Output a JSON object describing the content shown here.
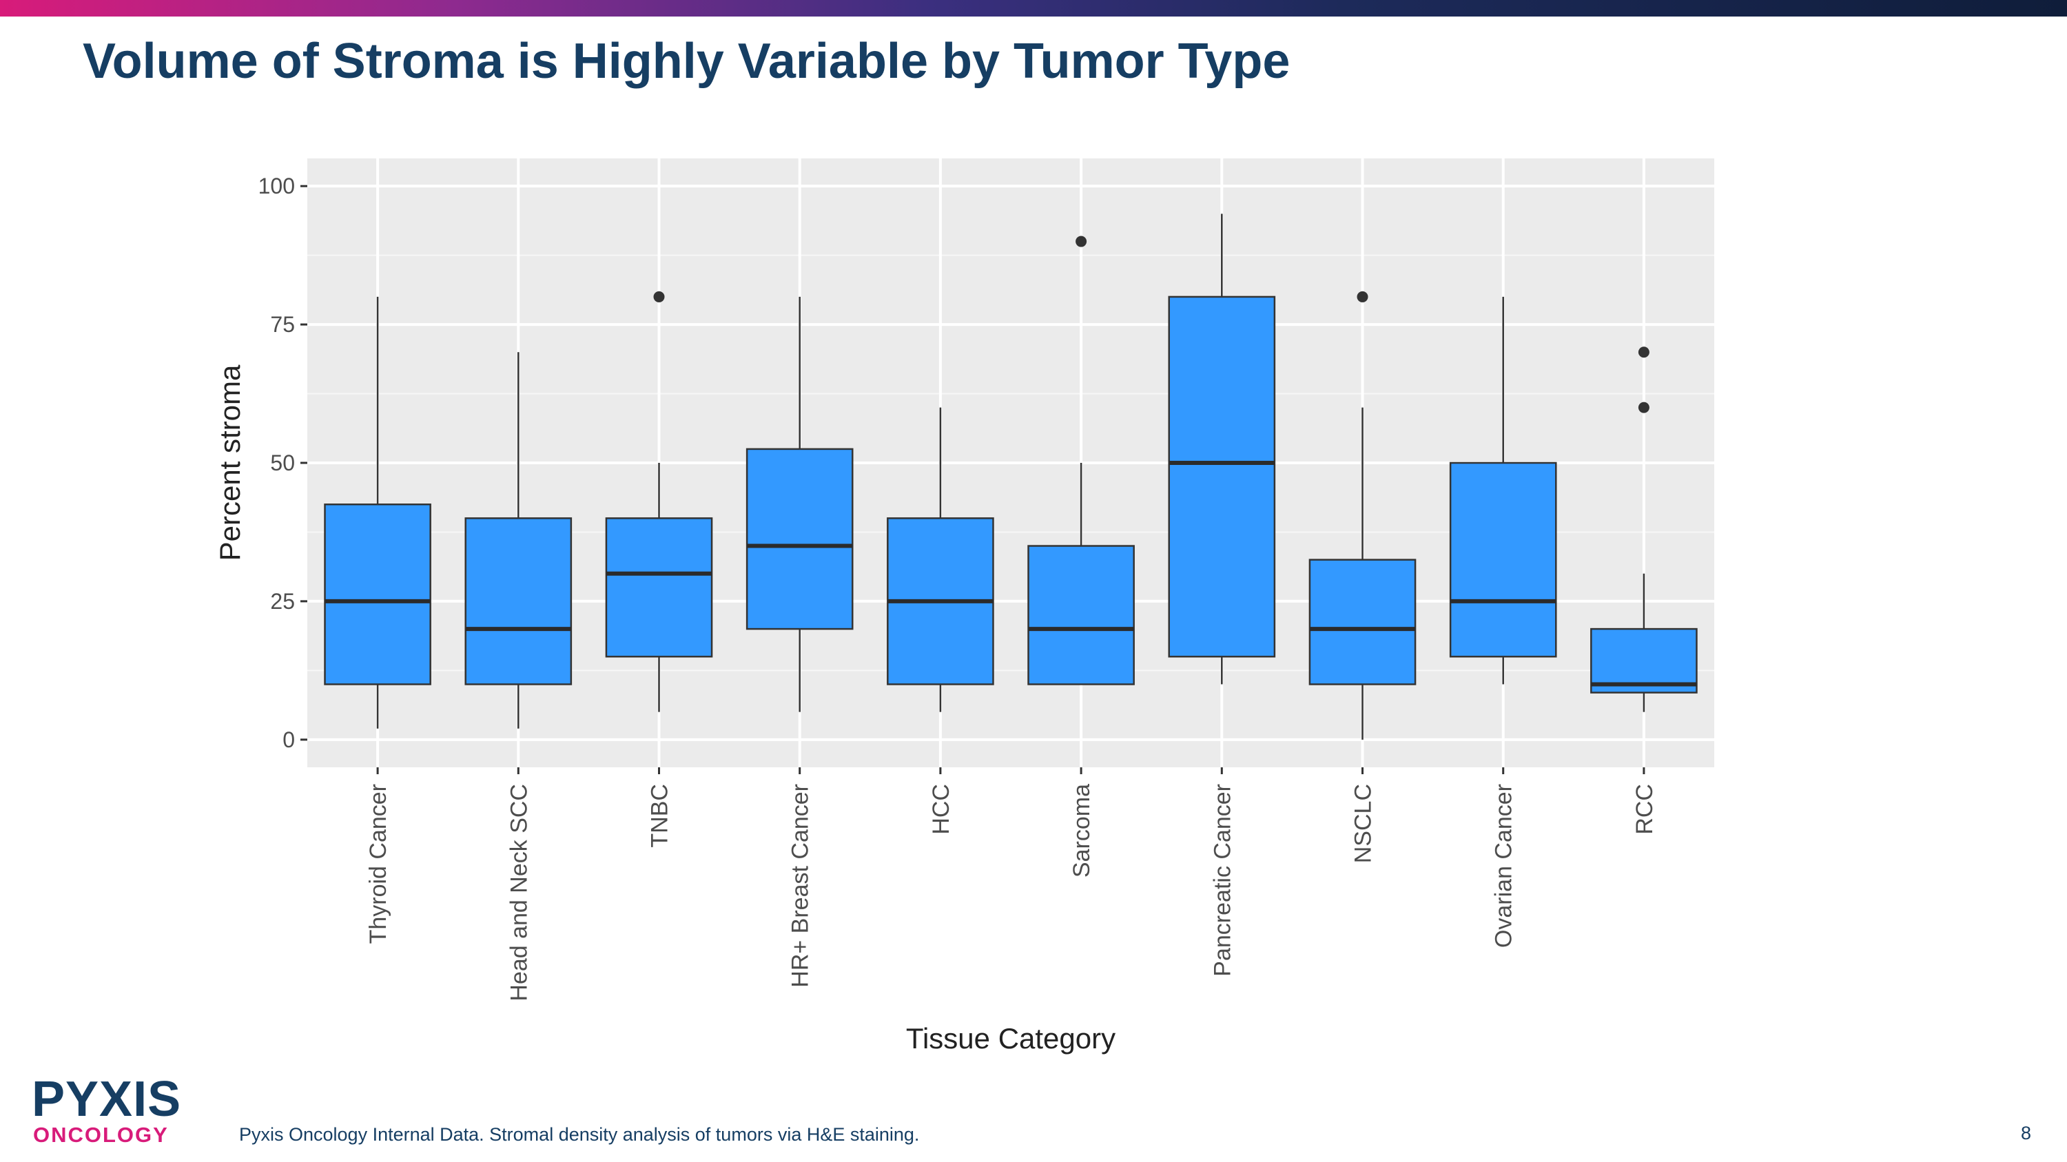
{
  "slide": {
    "title": "Volume of Stroma is Highly Variable by Tumor Type",
    "footnote": "Pyxis Oncology Internal Data. Stromal density analysis of tumors via H&E staining.",
    "page_number": "8",
    "logo": {
      "main": "PYXIS",
      "sub": "ONCOLOGY"
    },
    "colors": {
      "title": "#163e63",
      "brand_magenta": "#d81b7a",
      "box_fill": "#3399ff"
    }
  },
  "chart_data": {
    "type": "boxplot",
    "title": "",
    "xlabel": "Tissue Category",
    "ylabel": "Percent stroma",
    "ylim": [
      -5,
      105
    ],
    "yticks": [
      0,
      25,
      50,
      75,
      100
    ],
    "grid": true,
    "legend": "none",
    "categories": [
      "Thyroid Cancer",
      "Head and Neck SCC",
      "TNBC",
      "HR+ Breast Cancer",
      "HCC",
      "Sarcoma",
      "Pancreatic Cancer",
      "NSCLC",
      "Ovarian Cancer",
      "RCC"
    ],
    "boxes": [
      {
        "whisker_low": 2,
        "q1": 10,
        "median": 25,
        "q3": 42.5,
        "whisker_high": 80,
        "outliers": []
      },
      {
        "whisker_low": 2,
        "q1": 10,
        "median": 20,
        "q3": 40,
        "whisker_high": 70,
        "outliers": []
      },
      {
        "whisker_low": 5,
        "q1": 15,
        "median": 30,
        "q3": 40,
        "whisker_high": 50,
        "outliers": [
          80
        ]
      },
      {
        "whisker_low": 5,
        "q1": 20,
        "median": 35,
        "q3": 52.5,
        "whisker_high": 80,
        "outliers": []
      },
      {
        "whisker_low": 5,
        "q1": 10,
        "median": 25,
        "q3": 40,
        "whisker_high": 60,
        "outliers": []
      },
      {
        "whisker_low": 10,
        "q1": 10,
        "median": 20,
        "q3": 35,
        "whisker_high": 50,
        "outliers": [
          90
        ]
      },
      {
        "whisker_low": 10,
        "q1": 15,
        "median": 50,
        "q3": 80,
        "whisker_high": 95,
        "outliers": []
      },
      {
        "whisker_low": 0,
        "q1": 10,
        "median": 20,
        "q3": 32.5,
        "whisker_high": 60,
        "outliers": [
          80
        ]
      },
      {
        "whisker_low": 10,
        "q1": 15,
        "median": 25,
        "q3": 50,
        "whisker_high": 80,
        "outliers": []
      },
      {
        "whisker_low": 5,
        "q1": 8.5,
        "median": 10,
        "q3": 20,
        "whisker_high": 30,
        "outliers": [
          60,
          70
        ]
      }
    ]
  }
}
